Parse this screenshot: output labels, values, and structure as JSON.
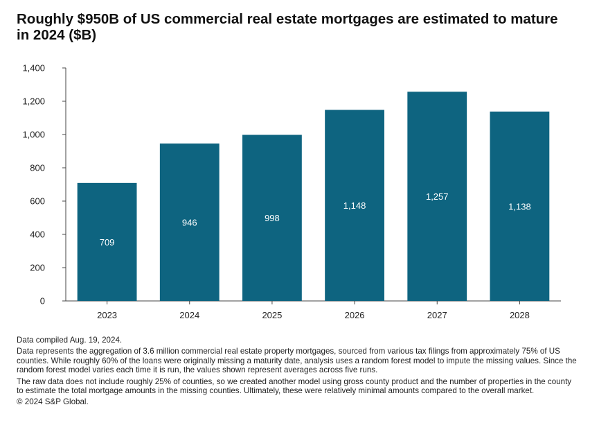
{
  "chart_data": {
    "type": "bar",
    "title": "Roughly $950B of US commercial real estate mortgages are estimated to mature in 2024 ($B)",
    "categories": [
      "2023",
      "2024",
      "2025",
      "2026",
      "2027",
      "2028"
    ],
    "values": [
      709,
      946,
      998,
      1148,
      1257,
      1138
    ],
    "value_labels": [
      "709",
      "946",
      "998",
      "1,148",
      "1,257",
      "1,138"
    ],
    "ylim": [
      0,
      1400
    ],
    "yticks": [
      0,
      200,
      400,
      600,
      800,
      1000,
      1200,
      1400
    ],
    "ytick_labels": [
      "0",
      "200",
      "400",
      "600",
      "800",
      "1,000",
      "1,200",
      "1,400"
    ],
    "xlabel": "",
    "ylabel": "",
    "grid": false,
    "bar_color": "#0e6480",
    "label_color": "#ffffff"
  },
  "notes": {
    "compiled": "Data compiled Aug. 19, 2024.",
    "methodology": "Data represents the aggregation of 3.6 million commercial real estate property mortgages, sourced from various tax filings from approximately 75% of US counties. While roughly 60% of the loans were originally missing a maturity date, analysis uses a random forest model to impute the missing values. Since the random forest model varies each time it is run, the values shown represent averages across five runs.",
    "coverage": "The raw data does not include roughly 25% of counties, so we created another model using gross county product and the number of properties in the county to estimate the total mortgage amounts in the missing counties. Ultimately, these were relatively minimal amounts compared to the overall market.",
    "copyright": "© 2024 S&P Global."
  }
}
